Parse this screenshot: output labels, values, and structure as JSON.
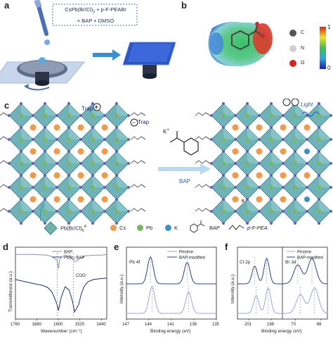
{
  "panels": {
    "a": {
      "label": "a",
      "solution_line1": "CsPb(Br/Cl)",
      "solution_line1_sub": "3",
      "solution_line1_rest": " + p-F-PEABr",
      "solution_line2": "+ BAP + DMSO"
    },
    "b": {
      "label": "b",
      "atoms": [
        "C",
        "N",
        "O"
      ],
      "colorbar_max": "1",
      "colorbar_min": "0"
    },
    "c": {
      "label": "c",
      "trap_label_top": "Trap",
      "trap_label_right": "Trap",
      "reagent_label": "K",
      "reagent_charge": "+",
      "arrow_label": "BAP",
      "light_label": "Light",
      "legend": {
        "octahedron": "Pb(Br/Cl)",
        "octahedron_sub": "6",
        "octahedron_sup": "4-",
        "cs": "Cs",
        "pb": "Pb",
        "k": "K",
        "bap": "BAP",
        "pfpea": "p-F-PEA"
      }
    },
    "d": {
      "label": "d",
      "ylabel": "Transmittance (a.u.)",
      "xlabel": "Wavenumber (cm⁻¹)",
      "legend": [
        "BAP",
        "PbBr₂:BAP"
      ],
      "annotation": "COO⁻",
      "xticks": [
        "1760",
        "1680",
        "1600",
        "1520",
        "1440"
      ]
    },
    "e": {
      "label": "e",
      "ylabel": "Intensity (a.u.)",
      "xlabel": "Binding energy (eV)",
      "legend": [
        "Pristine",
        "BAP-modified"
      ],
      "element": "Pb 4f",
      "xticks": [
        "147",
        "144",
        "141",
        "138",
        "135"
      ]
    },
    "f": {
      "label": "f",
      "ylabel": "Intensity (a.u.)",
      "xlabel": "Binding energy (eV)",
      "legend": [
        "Pristine",
        "BAP-modified"
      ],
      "element_left": "Cl 2p",
      "element_right": "Br 3d",
      "xticks": [
        "201",
        "198",
        "70",
        "68"
      ]
    }
  },
  "chart_data": [
    {
      "type": "line",
      "panel": "d",
      "xlabel": "Wavenumber (cm⁻¹)",
      "ylabel": "Transmittance (a.u.)",
      "xlim": [
        1760,
        1420
      ],
      "series": [
        {
          "name": "BAP",
          "x": [
            1760,
            1700,
            1640,
            1620,
            1605,
            1600,
            1595,
            1580,
            1560,
            1545,
            1535,
            1520,
            1500,
            1460,
            1440,
            1420
          ],
          "y": [
            0.9,
            0.9,
            0.89,
            0.86,
            0.82,
            0.7,
            0.84,
            0.88,
            0.88,
            0.82,
            0.8,
            0.84,
            0.88,
            0.89,
            0.89,
            0.9
          ]
        },
        {
          "name": "PbBr₂:BAP",
          "x": [
            1760,
            1700,
            1660,
            1640,
            1625,
            1615,
            1605,
            1600,
            1590,
            1575,
            1560,
            1548,
            1540,
            1525,
            1515,
            1505,
            1490,
            1470,
            1450,
            1420
          ],
          "y": [
            0.55,
            0.5,
            0.47,
            0.44,
            0.38,
            0.3,
            0.2,
            0.12,
            0.3,
            0.45,
            0.4,
            0.25,
            0.1,
            0.2,
            0.35,
            0.45,
            0.52,
            0.55,
            0.56,
            0.57
          ]
        }
      ]
    },
    {
      "type": "line",
      "panel": "e",
      "xlabel": "Binding energy (eV)",
      "ylabel": "Intensity (a.u.)",
      "xlim": [
        147,
        135
      ],
      "series": [
        {
          "name": "Pristine",
          "peaks": [
            143.6,
            138.7
          ]
        },
        {
          "name": "BAP-modified",
          "peaks": [
            143.8,
            138.9
          ]
        }
      ]
    },
    {
      "type": "line",
      "panel": "f",
      "xlabel": "Binding energy (eV)",
      "ylabel": "Intensity (a.u.)",
      "series": [
        {
          "name": "Pristine",
          "peaks_cl2p": [
            200.0,
            198.4
          ],
          "peaks_br3d": [
            69.6,
            68.5
          ]
        },
        {
          "name": "BAP-modified",
          "peaks_cl2p": [
            200.2,
            198.6
          ],
          "peaks_br3d": [
            69.8,
            68.7
          ]
        }
      ]
    }
  ],
  "colors": {
    "pristine": "#9aa6d8",
    "modified": "#2b3f8f",
    "bap_line": "#8a8fb0",
    "pbbr_line": "#1f2f7a",
    "teal_octa": "#6fb3b8",
    "cs_orange": "#f2994a",
    "pb_green": "#7bb661",
    "k_blue": "#3b8fd1",
    "node_purple": "#6a5fc1"
  }
}
